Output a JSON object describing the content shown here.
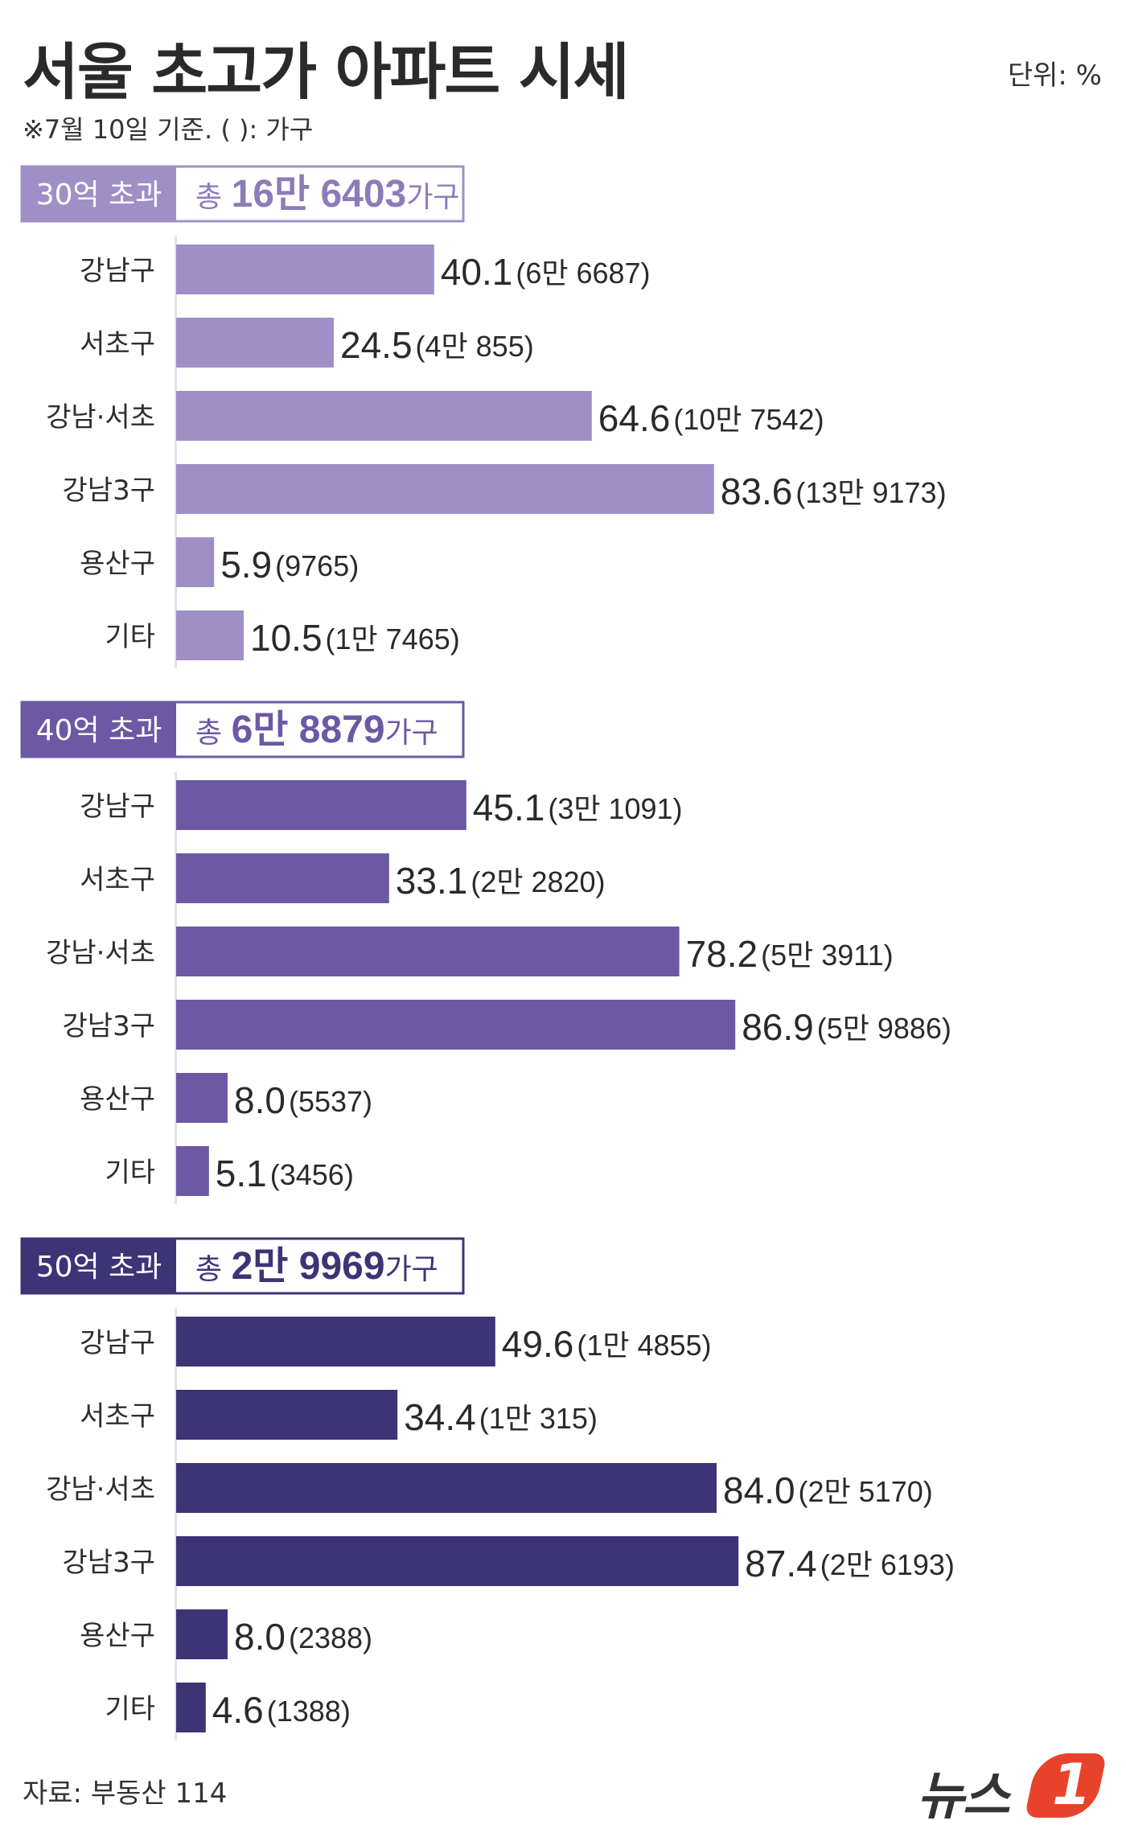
{
  "title": "서울 초고가 아파트 시세",
  "unit_label": "단위: %",
  "note": "※7월 10일 기준.  ( ): 가구",
  "source": "자료: 부동산 114",
  "logo": {
    "text": "뉴스",
    "badge": "1"
  },
  "chart_data": [
    {
      "type": "bar",
      "orientation": "horizontal",
      "group_label": "30억 초과",
      "total": {
        "prefix": "총 ",
        "number": "16만 6403",
        "suffix": "가구"
      },
      "color": "#a08fc6",
      "categories": [
        "강남구",
        "서초구",
        "강남·서초",
        "강남3구",
        "용산구",
        "기타"
      ],
      "values": [
        40.1,
        24.5,
        64.6,
        83.6,
        5.9,
        10.5
      ],
      "value_labels": [
        "40.1",
        "24.5",
        "64.6",
        "83.6",
        "5.9",
        "10.5"
      ],
      "counts": [
        "(6만 6687)",
        "(4만 855)",
        "(10만 7542)",
        "(13만 9173)",
        "(9765)",
        "(1만 7465)"
      ],
      "xlim": [
        0,
        100
      ]
    },
    {
      "type": "bar",
      "orientation": "horizontal",
      "group_label": "40억 초과",
      "total": {
        "prefix": "총 ",
        "number": "6만 8879",
        "suffix": "가구"
      },
      "color": "#6d58a3",
      "categories": [
        "강남구",
        "서초구",
        "강남·서초",
        "강남3구",
        "용산구",
        "기타"
      ],
      "values": [
        45.1,
        33.1,
        78.2,
        86.9,
        8.0,
        5.1
      ],
      "value_labels": [
        "45.1",
        "33.1",
        "78.2",
        "86.9",
        "8.0",
        "5.1"
      ],
      "counts": [
        "(3만 1091)",
        "(2만 2820)",
        "(5만 3911)",
        "(5만 9886)",
        "(5537)",
        "(3456)"
      ],
      "xlim": [
        0,
        100
      ]
    },
    {
      "type": "bar",
      "orientation": "horizontal",
      "group_label": "50억 초과",
      "total": {
        "prefix": "총 ",
        "number": "2만 9969",
        "suffix": "가구"
      },
      "color": "#3d3476",
      "categories": [
        "강남구",
        "서초구",
        "강남·서초",
        "강남3구",
        "용산구",
        "기타"
      ],
      "values": [
        49.6,
        34.4,
        84.0,
        87.4,
        8.0,
        4.6
      ],
      "value_labels": [
        "49.6",
        "34.4",
        "84.0",
        "87.4",
        "8.0",
        "4.6"
      ],
      "counts": [
        "(1만 4855)",
        "(1만 315)",
        "(2만 5170)",
        "(2만 6193)",
        "(2388)",
        "(1388)"
      ],
      "xlim": [
        0,
        100
      ]
    }
  ]
}
